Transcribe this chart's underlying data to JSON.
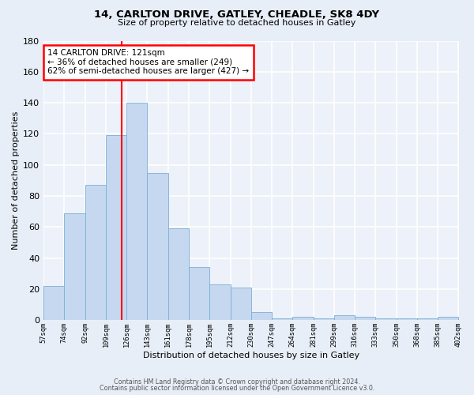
{
  "title": "14, CARLTON DRIVE, GATLEY, CHEADLE, SK8 4DY",
  "subtitle": "Size of property relative to detached houses in Gatley",
  "xlabel": "Distribution of detached houses by size in Gatley",
  "ylabel": "Number of detached properties",
  "bin_edges": [
    57,
    74,
    91,
    108,
    125,
    142,
    159,
    176,
    193,
    210,
    227,
    244,
    261,
    278,
    295,
    312,
    329,
    346,
    363,
    380,
    397
  ],
  "bar_heights": [
    22,
    69,
    87,
    119,
    140,
    95,
    59,
    34,
    23,
    21,
    5,
    1,
    2,
    1,
    3,
    2,
    1,
    1,
    1,
    2
  ],
  "bar_color": "#c5d8f0",
  "bar_edgecolor": "#7bafd4",
  "vline_x": 121,
  "vline_color": "red",
  "annotation_text": "14 CARLTON DRIVE: 121sqm\n← 36% of detached houses are smaller (249)\n62% of semi-detached houses are larger (427) →",
  "annotation_box_color": "white",
  "annotation_box_edgecolor": "red",
  "ylim": [
    0,
    180
  ],
  "yticks": [
    0,
    20,
    40,
    60,
    80,
    100,
    120,
    140,
    160,
    180
  ],
  "xtick_labels": [
    "57sqm",
    "74sqm",
    "92sqm",
    "109sqm",
    "126sqm",
    "143sqm",
    "161sqm",
    "178sqm",
    "195sqm",
    "212sqm",
    "230sqm",
    "247sqm",
    "264sqm",
    "281sqm",
    "299sqm",
    "316sqm",
    "333sqm",
    "350sqm",
    "368sqm",
    "385sqm",
    "402sqm"
  ],
  "footer_line1": "Contains HM Land Registry data © Crown copyright and database right 2024.",
  "footer_line2": "Contains public sector information licensed under the Open Government Licence v3.0.",
  "bg_color": "#e8eef8",
  "plot_bg_color": "#edf1f9",
  "grid_color": "white"
}
